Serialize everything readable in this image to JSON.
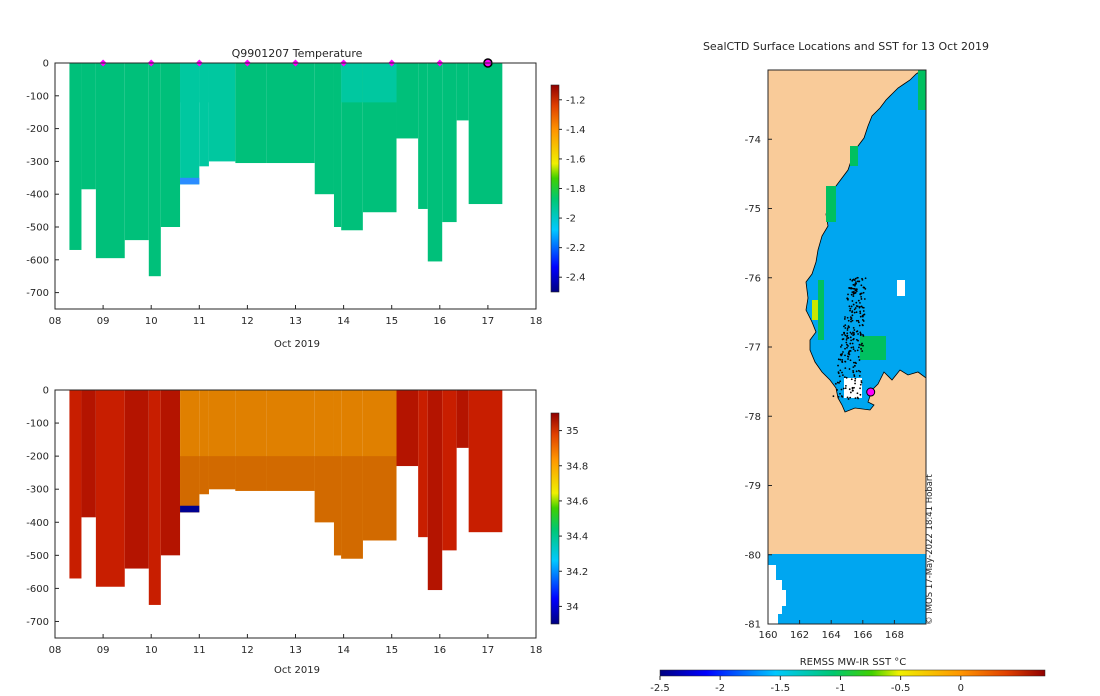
{
  "colors": {
    "t_main": "#00c07a",
    "t_light": "#00c8a0",
    "t_blue": "#00b4e8",
    "t_deep": "#2a8cff",
    "s_red": "#b41400",
    "s_red2": "#c81e00",
    "s_orange": "#e08000",
    "s_orange2": "#d26a00",
    "s_blue": "#000090",
    "land": "#f9cb99",
    "ocean": "#00a6f0",
    "ice": "#ffffff",
    "marker": "#ff00ff"
  },
  "panels": {
    "temp": {
      "title": "Q9901207  Temperature",
      "xlabel": "Oct 2019",
      "xticks": [
        "08",
        "09",
        "10",
        "11",
        "12",
        "13",
        "14",
        "15",
        "16",
        "17",
        "18"
      ],
      "yticks": [
        "0",
        "-100",
        "-200",
        "-300",
        "-400",
        "-500",
        "-600",
        "-700"
      ],
      "colorbar_ticks": [
        "-1.2",
        "-1.4",
        "-1.6",
        "-1.8",
        "-2",
        "-2.2",
        "-2.4"
      ]
    },
    "sal": {
      "title": "",
      "xlabel": "Oct 2019",
      "xticks": [
        "08",
        "09",
        "10",
        "11",
        "12",
        "13",
        "14",
        "15",
        "16",
        "17",
        "18"
      ],
      "yticks": [
        "0",
        "-100",
        "-200",
        "-300",
        "-400",
        "-500",
        "-600",
        "-700"
      ],
      "colorbar_ticks": [
        "35",
        "34.8",
        "34.6",
        "34.4",
        "34.2",
        "34"
      ]
    },
    "map": {
      "title": "SealCTD Surface Locations and SST for 13 Oct 2019",
      "lat_ticks": [
        "-74",
        "-75",
        "-76",
        "-77",
        "-78",
        "-79",
        "-80",
        "-81"
      ],
      "lon_ticks": [
        "160",
        "162",
        "164",
        "166",
        "168"
      ],
      "watermark": "© IMOS 17-May-2022 18:41 Hobart",
      "colorbar_label": "REMSS MW-IR SST °C",
      "colorbar_ticks": [
        "-2.5",
        "-2",
        "-1.5",
        "-1",
        "-0.5",
        "0"
      ]
    }
  },
  "chart_data": [
    {
      "type": "heatmap",
      "title": "Q9901207  Temperature",
      "xlabel": "Oct 2019",
      "ylabel": "",
      "xlim": [
        8,
        18
      ],
      "ylim": [
        -750,
        0
      ],
      "clim": [
        -2.5,
        -1.1
      ],
      "colorbar_ticks": [
        -1.2,
        -1.4,
        -1.6,
        -1.8,
        -2,
        -2.2,
        -2.4
      ],
      "profiles": [
        {
          "x0": 8.3,
          "x1": 8.55,
          "bottom": -570
        },
        {
          "x0": 8.55,
          "x1": 8.85,
          "bottom": -385
        },
        {
          "x0": 8.85,
          "x1": 9.45,
          "bottom": -595
        },
        {
          "x0": 9.45,
          "x1": 9.95,
          "bottom": -540
        },
        {
          "x0": 9.95,
          "x1": 10.2,
          "bottom": -650
        },
        {
          "x0": 10.2,
          "x1": 10.6,
          "bottom": -500
        },
        {
          "x0": 10.6,
          "x1": 11.0,
          "bottom": -370
        },
        {
          "x0": 11.0,
          "x1": 11.2,
          "bottom": -315
        },
        {
          "x0": 11.2,
          "x1": 11.75,
          "bottom": -300
        },
        {
          "x0": 11.75,
          "x1": 12.4,
          "bottom": -305
        },
        {
          "x0": 12.4,
          "x1": 13.4,
          "bottom": -305
        },
        {
          "x0": 13.4,
          "x1": 13.8,
          "bottom": -400
        },
        {
          "x0": 13.8,
          "x1": 13.95,
          "bottom": -500
        },
        {
          "x0": 13.95,
          "x1": 14.4,
          "bottom": -510
        },
        {
          "x0": 14.4,
          "x1": 15.1,
          "bottom": -455
        },
        {
          "x0": 15.1,
          "x1": 15.55,
          "bottom": -230
        },
        {
          "x0": 15.55,
          "x1": 15.75,
          "bottom": -445
        },
        {
          "x0": 15.75,
          "x1": 16.05,
          "bottom": -605
        },
        {
          "x0": 16.05,
          "x1": 16.35,
          "bottom": -485
        },
        {
          "x0": 16.35,
          "x1": 16.6,
          "bottom": -175
        },
        {
          "x0": 16.6,
          "x1": 17.3,
          "bottom": -430
        }
      ],
      "surface_markers": [
        9,
        10,
        11,
        12,
        13,
        14,
        15,
        16
      ],
      "current_marker": 17
    },
    {
      "type": "heatmap",
      "title": "",
      "xlabel": "Oct 2019",
      "ylabel": "",
      "xlim": [
        8,
        18
      ],
      "ylim": [
        -750,
        0
      ],
      "clim": [
        33.9,
        35.1
      ],
      "colorbar_ticks": [
        35,
        34.8,
        34.6,
        34.4,
        34.2,
        34
      ]
    },
    {
      "type": "scatter",
      "title": "SealCTD Surface Locations and SST for 13 Oct 2019",
      "xlabel": "",
      "ylabel": "",
      "xlim": [
        160,
        170
      ],
      "ylim": [
        -81,
        -73
      ],
      "points_lon_range": [
        164,
        167
      ],
      "points_lat_range": [
        -77.8,
        -76.0
      ],
      "current_position": {
        "lon": 166.5,
        "lat": -77.65
      },
      "colorbar_label": "REMSS MW-IR SST °C",
      "clim": [
        -2.5,
        0.7
      ]
    }
  ]
}
